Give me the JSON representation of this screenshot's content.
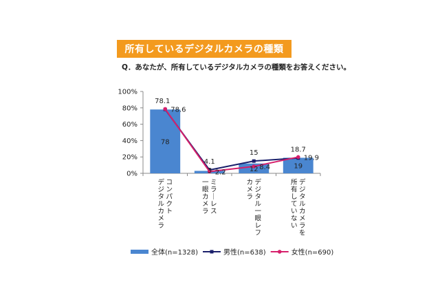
{
  "header": {
    "title": "所有しているデジタルカメラの種類",
    "question": "Q．あなたが、所有しているデジタルカメラの種類をお答えください。"
  },
  "chart_data": {
    "type": "bar",
    "title": "所有しているデジタルカメラの種類",
    "categories": [
      "コンパクト\nデジタルカメラ",
      "ミラーレス\n一眼カメラ",
      "デジタル一眼レフ\nカメラ",
      "デジタルカメラを\n所有していない"
    ],
    "y_ticks": [
      "0%",
      "20%",
      "40%",
      "60%",
      "80%",
      "100%"
    ],
    "ylim": [
      0,
      100
    ],
    "grid": false,
    "legend_position": "bottom",
    "series": [
      {
        "name": "全体(n=1328)",
        "kind": "bar",
        "color": "#4a86d0",
        "values": [
          78,
          3,
          12,
          19
        ]
      },
      {
        "name": "男性(n=638)",
        "kind": "line",
        "color": "#1a1f6b",
        "values": [
          78.1,
          4.1,
          15,
          18.7
        ]
      },
      {
        "name": "女性(n=690)",
        "kind": "line",
        "color": "#d61f6b",
        "values": [
          78.6,
          2.2,
          8.4,
          19.9
        ]
      }
    ]
  }
}
